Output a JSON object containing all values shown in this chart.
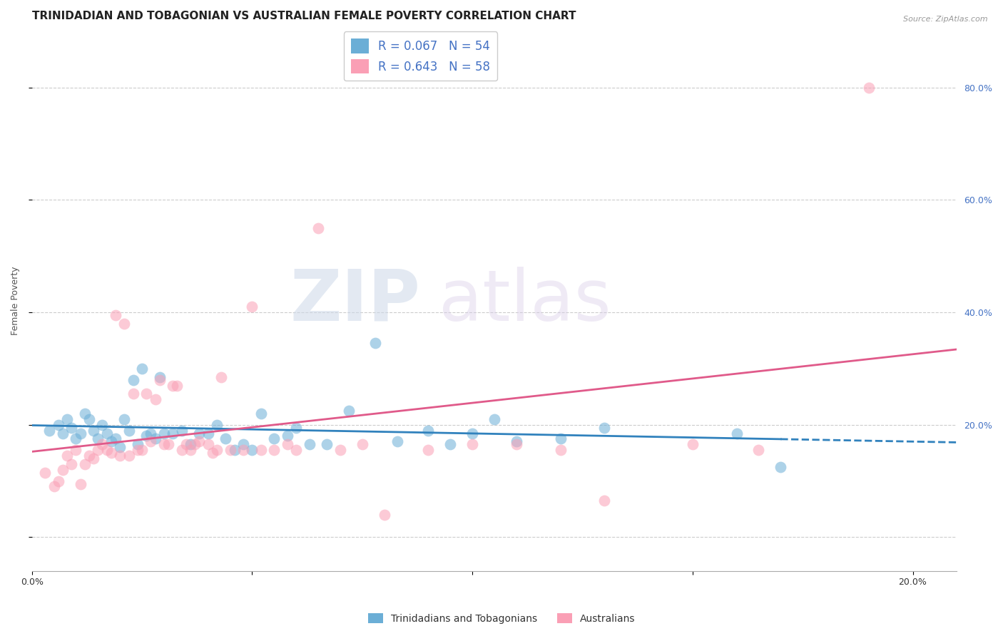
{
  "title": "TRINIDADIAN AND TOBAGONIAN VS AUSTRALIAN FEMALE POVERTY CORRELATION CHART",
  "source": "Source: ZipAtlas.com",
  "ylabel": "Female Poverty",
  "ytick_labels": [
    "",
    "20.0%",
    "40.0%",
    "60.0%",
    "80.0%"
  ],
  "ytick_values": [
    0.0,
    0.2,
    0.4,
    0.6,
    0.8
  ],
  "xtick_positions": [
    0.0,
    0.05,
    0.1,
    0.15,
    0.2
  ],
  "xtick_labels": [
    "0.0%",
    "",
    "",
    "",
    "20.0%"
  ],
  "xlim": [
    0.0,
    0.21
  ],
  "ylim": [
    -0.06,
    0.9
  ],
  "blue_R": 0.067,
  "blue_N": 54,
  "pink_R": 0.643,
  "pink_N": 58,
  "blue_color": "#6baed6",
  "pink_color": "#fa9fb5",
  "blue_line_color": "#3182bd",
  "pink_line_color": "#e05a8a",
  "blue_scatter_x": [
    0.004,
    0.006,
    0.007,
    0.008,
    0.009,
    0.01,
    0.011,
    0.012,
    0.013,
    0.014,
    0.015,
    0.016,
    0.017,
    0.018,
    0.019,
    0.02,
    0.021,
    0.022,
    0.023,
    0.024,
    0.025,
    0.026,
    0.027,
    0.028,
    0.029,
    0.03,
    0.032,
    0.034,
    0.036,
    0.038,
    0.04,
    0.042,
    0.044,
    0.046,
    0.048,
    0.05,
    0.052,
    0.055,
    0.058,
    0.06,
    0.063,
    0.067,
    0.072,
    0.078,
    0.083,
    0.09,
    0.095,
    0.1,
    0.105,
    0.11,
    0.12,
    0.13,
    0.16,
    0.17
  ],
  "blue_scatter_y": [
    0.19,
    0.2,
    0.185,
    0.21,
    0.195,
    0.175,
    0.185,
    0.22,
    0.21,
    0.19,
    0.175,
    0.2,
    0.185,
    0.17,
    0.175,
    0.16,
    0.21,
    0.19,
    0.28,
    0.165,
    0.3,
    0.18,
    0.185,
    0.175,
    0.285,
    0.185,
    0.185,
    0.19,
    0.165,
    0.185,
    0.185,
    0.2,
    0.175,
    0.155,
    0.165,
    0.155,
    0.22,
    0.175,
    0.18,
    0.195,
    0.165,
    0.165,
    0.225,
    0.345,
    0.17,
    0.19,
    0.165,
    0.185,
    0.21,
    0.17,
    0.175,
    0.195,
    0.185,
    0.125
  ],
  "pink_scatter_x": [
    0.003,
    0.005,
    0.006,
    0.007,
    0.008,
    0.009,
    0.01,
    0.011,
    0.012,
    0.013,
    0.014,
    0.015,
    0.016,
    0.017,
    0.018,
    0.019,
    0.02,
    0.021,
    0.022,
    0.023,
    0.024,
    0.025,
    0.026,
    0.027,
    0.028,
    0.029,
    0.03,
    0.031,
    0.032,
    0.033,
    0.034,
    0.035,
    0.036,
    0.037,
    0.038,
    0.04,
    0.041,
    0.042,
    0.043,
    0.045,
    0.048,
    0.05,
    0.052,
    0.055,
    0.058,
    0.06,
    0.065,
    0.07,
    0.075,
    0.08,
    0.09,
    0.1,
    0.11,
    0.12,
    0.13,
    0.15,
    0.165,
    0.19
  ],
  "pink_scatter_y": [
    0.115,
    0.09,
    0.1,
    0.12,
    0.145,
    0.13,
    0.155,
    0.095,
    0.13,
    0.145,
    0.14,
    0.155,
    0.165,
    0.155,
    0.15,
    0.395,
    0.145,
    0.38,
    0.145,
    0.255,
    0.155,
    0.155,
    0.255,
    0.17,
    0.245,
    0.28,
    0.165,
    0.165,
    0.27,
    0.27,
    0.155,
    0.165,
    0.155,
    0.165,
    0.17,
    0.165,
    0.15,
    0.155,
    0.285,
    0.155,
    0.155,
    0.41,
    0.155,
    0.155,
    0.165,
    0.155,
    0.55,
    0.155,
    0.165,
    0.04,
    0.155,
    0.165,
    0.165,
    0.155,
    0.065,
    0.165,
    0.155,
    0.8
  ],
  "legend_blue_label": "R = 0.067   N = 54",
  "legend_pink_label": "R = 0.643   N = 58",
  "bottom_legend_blue": "Trinidadians and Tobagonians",
  "bottom_legend_pink": "Australians",
  "grid_color": "#cccccc",
  "background_color": "#ffffff",
  "title_fontsize": 11,
  "axis_label_fontsize": 9,
  "tick_fontsize": 9,
  "legend_fontsize": 12
}
